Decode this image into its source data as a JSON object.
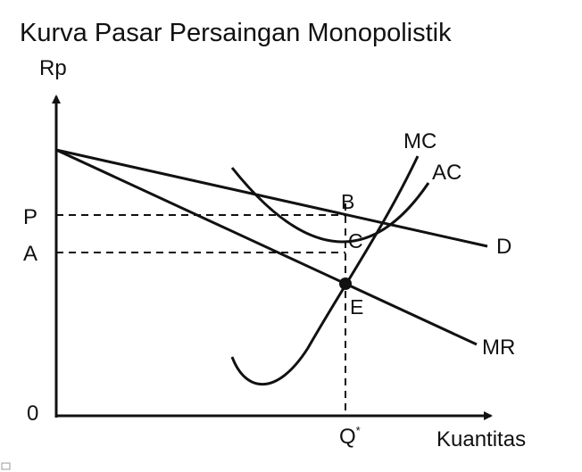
{
  "title": "Kurva Pasar Persaingan Monopolistik",
  "axes": {
    "y_label": "Rp",
    "x_label": "Kuantitas",
    "origin_label": "0"
  },
  "price_levels": {
    "p_label": "P",
    "a_label": "A"
  },
  "quantity_marker": {
    "label": "Q",
    "superscript": "*"
  },
  "curves": {
    "mc": "MC",
    "ac": "AC",
    "demand": "D",
    "mr": "MR"
  },
  "points": {
    "b": "B",
    "c": "C",
    "e": "E"
  },
  "colors": {
    "ink": "#111111",
    "background": "#ffffff"
  }
}
